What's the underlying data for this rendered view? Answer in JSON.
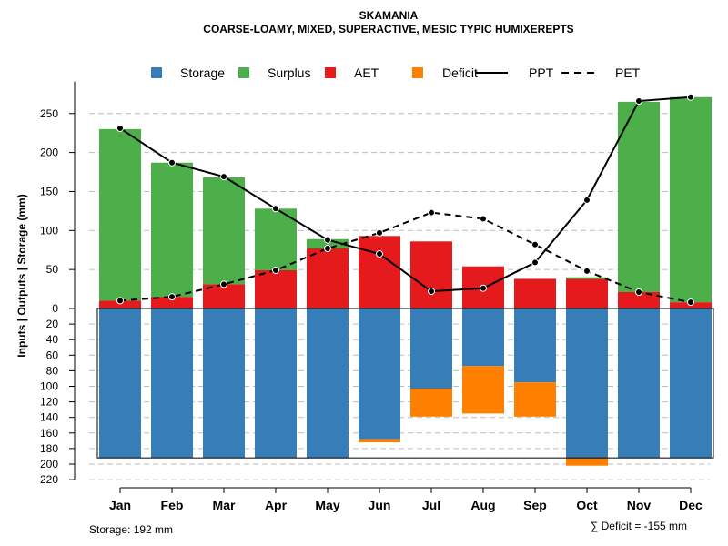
{
  "chart_data": {
    "type": "bar",
    "title": "SKAMANIA",
    "subtitle": "COARSE-LOAMY, MIXED, SUPERACTIVE, MESIC TYPIC HUMIXEREPTS",
    "ylabel": "Inputs | Outputs | Storage    (mm)",
    "categories": [
      "Jan",
      "Feb",
      "Mar",
      "Apr",
      "May",
      "Jun",
      "Jul",
      "Aug",
      "Sep",
      "Oct",
      "Nov",
      "Dec"
    ],
    "upper_ticks": [
      0,
      50,
      100,
      150,
      200,
      250
    ],
    "lower_ticks": [
      20,
      40,
      60,
      80,
      100,
      120,
      140,
      160,
      180,
      200,
      220
    ],
    "ylim_upper": [
      0,
      280
    ],
    "ylim_lower": [
      0,
      220
    ],
    "legend": [
      {
        "label": "Storage",
        "color": "#377eb8",
        "kind": "box"
      },
      {
        "label": "Surplus",
        "color": "#4daf4a",
        "kind": "box"
      },
      {
        "label": "AET",
        "color": "#e41a1c",
        "kind": "box"
      },
      {
        "label": "Deficit",
        "color": "#ff7f00",
        "kind": "box"
      },
      {
        "label": "PPT",
        "color": "#000000",
        "kind": "solid"
      },
      {
        "label": "PET",
        "color": "#000000",
        "kind": "dashed"
      }
    ],
    "series": [
      {
        "name": "AET",
        "color": "#e41a1c",
        "values": [
          10,
          15,
          31,
          49,
          77,
          93,
          86,
          54,
          38,
          38,
          21,
          8
        ]
      },
      {
        "name": "Surplus",
        "color": "#4daf4a",
        "values": [
          220,
          172,
          137,
          79,
          12,
          0,
          0,
          0,
          0,
          2,
          244,
          263
        ]
      },
      {
        "name": "Storage",
        "color": "#377eb8",
        "values": [
          192,
          192,
          192,
          192,
          192,
          168,
          103,
          74,
          95,
          192,
          192,
          192
        ]
      },
      {
        "name": "Deficit",
        "color": "#ff7f00",
        "values": [
          0,
          0,
          0,
          0,
          0,
          4,
          36,
          61,
          44,
          10,
          0,
          0
        ]
      },
      {
        "name": "PPT",
        "color": "#000000",
        "values": [
          231,
          187,
          169,
          128,
          88,
          70,
          22,
          26,
          59,
          139,
          266,
          271
        ]
      },
      {
        "name": "PET",
        "color": "#000000",
        "values": [
          10,
          15,
          31,
          49,
          77,
          97,
          123,
          115,
          82,
          48,
          21,
          8
        ]
      }
    ],
    "storage_note": "Storage: 192 mm",
    "deficit_note": "∑ Deficit = -155 mm"
  }
}
